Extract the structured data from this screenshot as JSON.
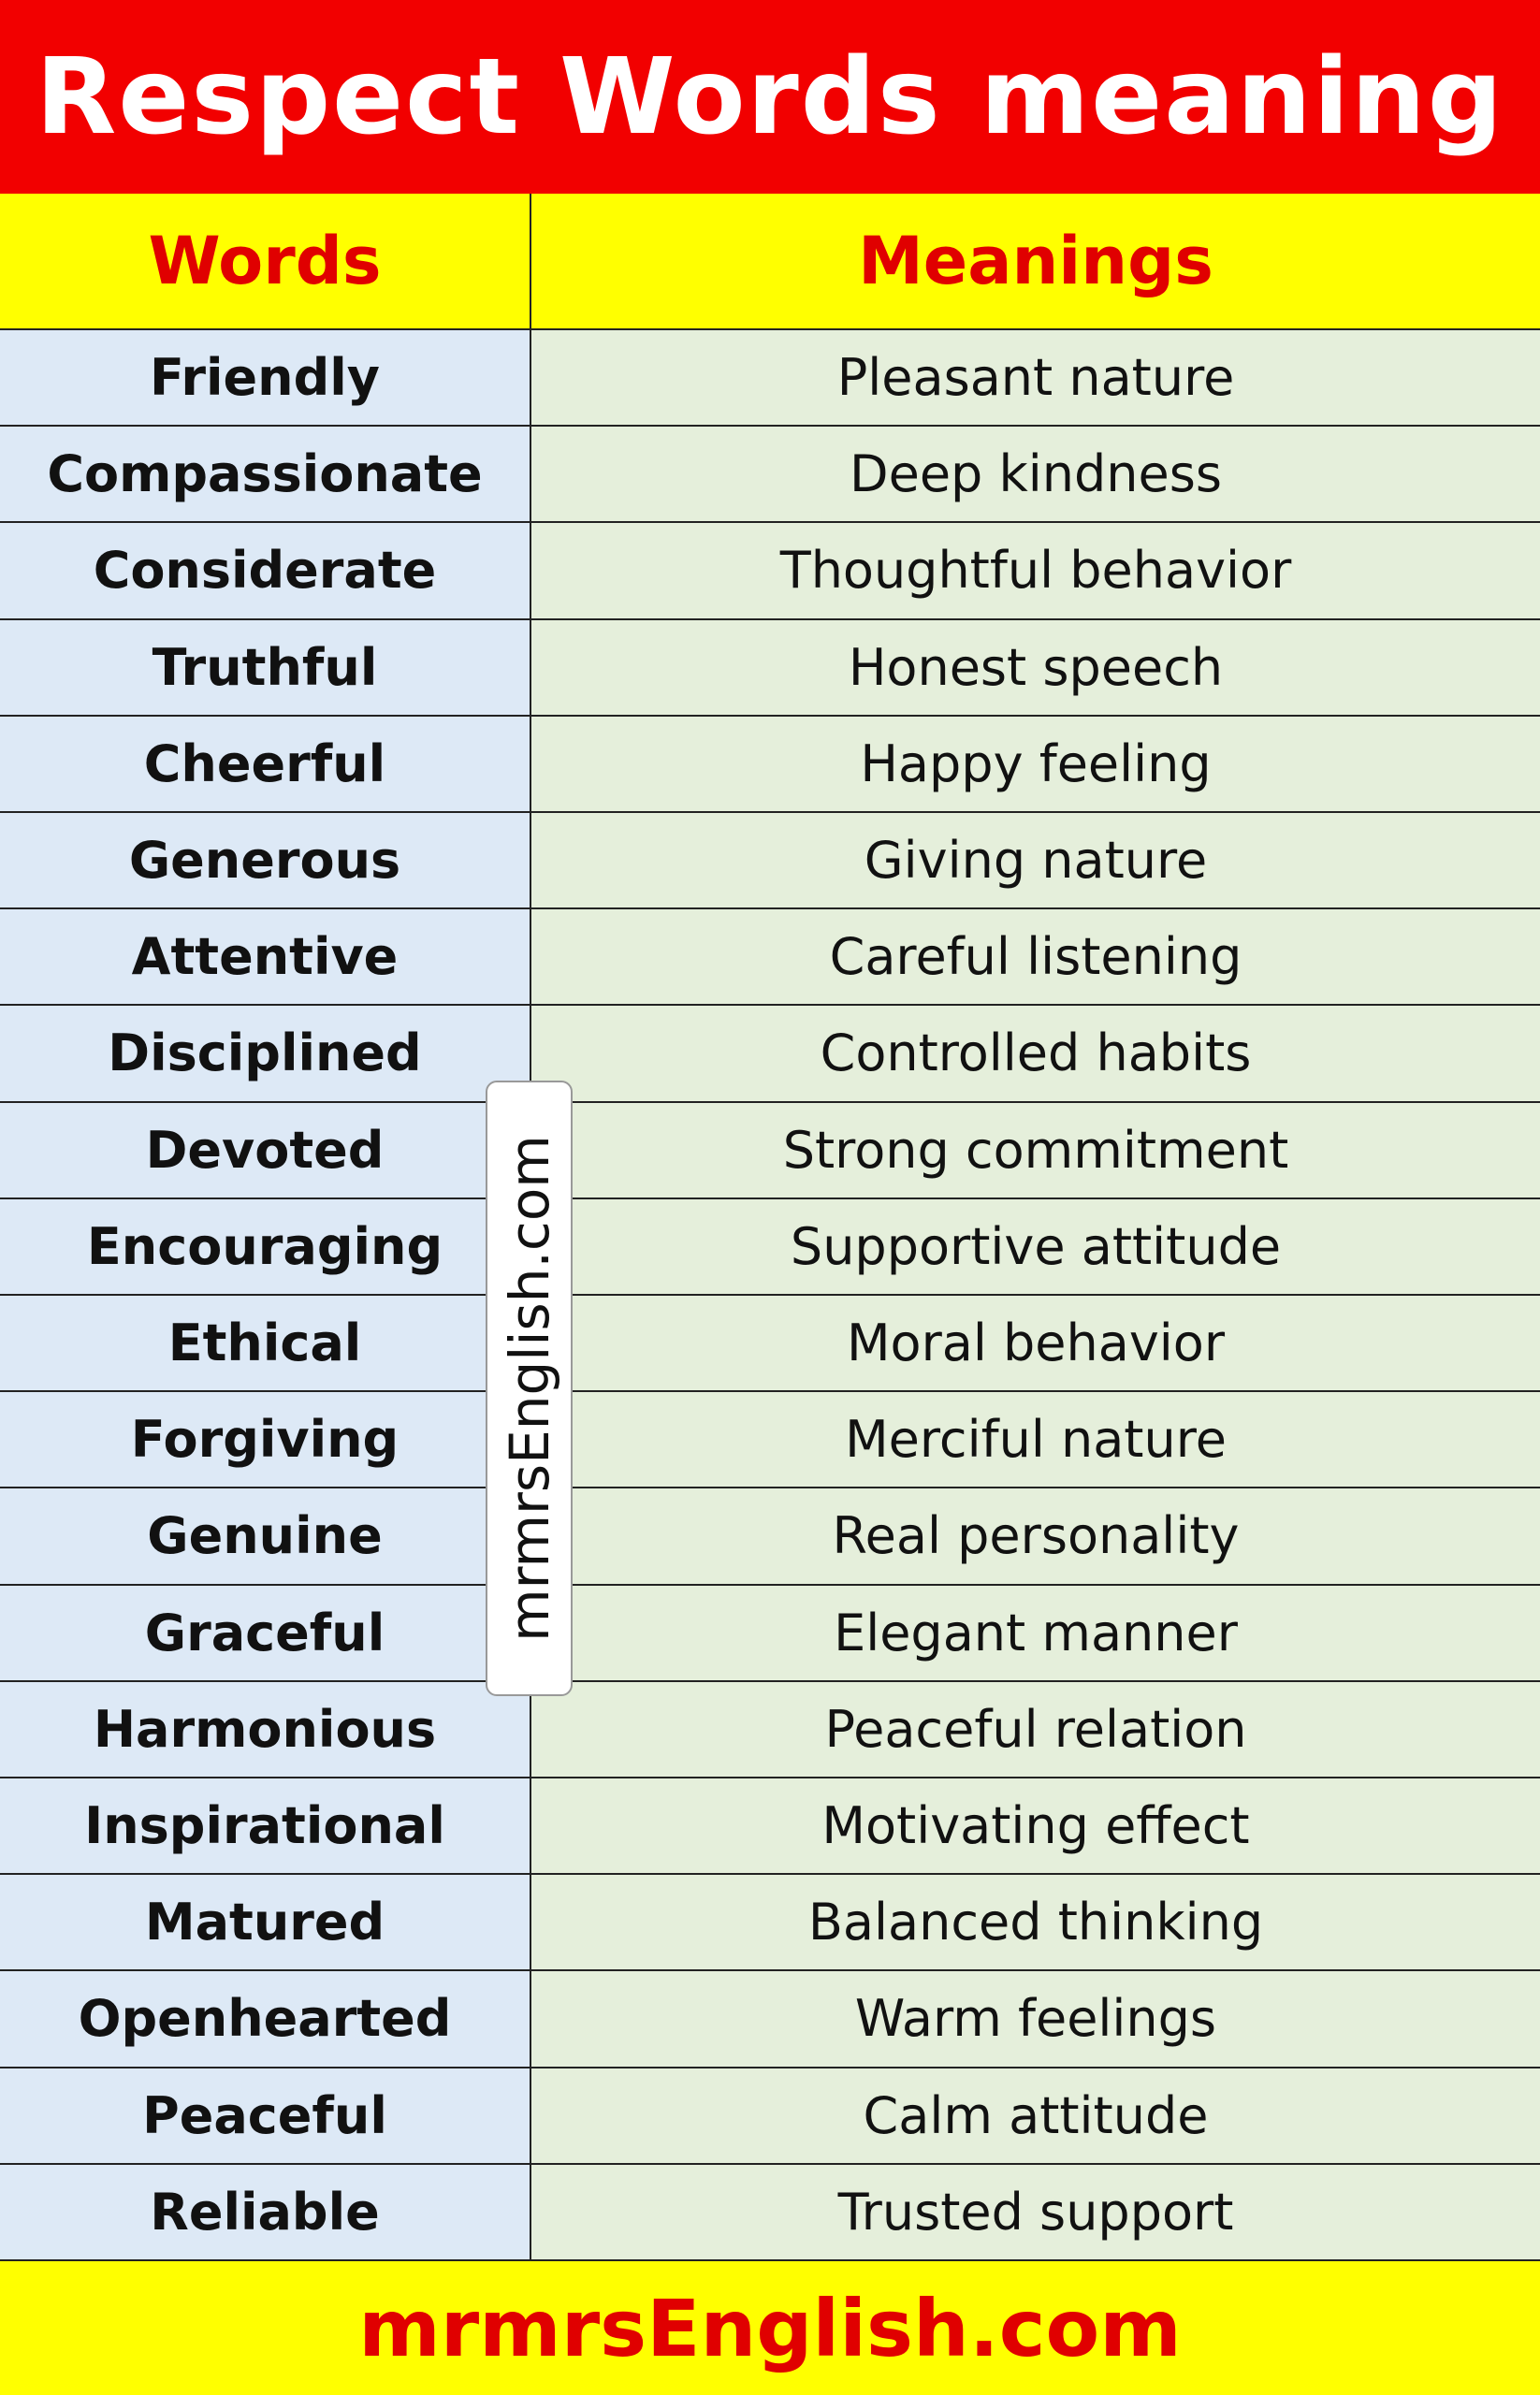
{
  "header": {
    "title": "Respect Words meaning"
  },
  "table": {
    "headers": [
      "Words",
      "Meanings"
    ],
    "rows": [
      [
        "Friendly",
        "Pleasant nature"
      ],
      [
        "Compassionate",
        "Deep kindness"
      ],
      [
        "Considerate",
        "Thoughtful behavior"
      ],
      [
        "Truthful",
        "Honest speech"
      ],
      [
        "Cheerful",
        "Happy feeling"
      ],
      [
        "Generous",
        "Giving nature"
      ],
      [
        "Attentive",
        "Careful listening"
      ],
      [
        "Disciplined",
        "Controlled habits"
      ],
      [
        "Devoted",
        "Strong commitment"
      ],
      [
        "Encouraging",
        "Supportive attitude"
      ],
      [
        "Ethical",
        "Moral behavior"
      ],
      [
        "Forgiving",
        "Merciful nature"
      ],
      [
        "Genuine",
        "Real personality"
      ],
      [
        "Graceful",
        "Elegant manner"
      ],
      [
        "Harmonious",
        "Peaceful relation"
      ],
      [
        "Inspirational",
        "Motivating effect"
      ],
      [
        "Matured",
        "Balanced thinking"
      ],
      [
        "Openhearted",
        "Warm feelings"
      ],
      [
        "Peaceful",
        "Calm attitude"
      ],
      [
        "Reliable",
        "Trusted support"
      ]
    ]
  },
  "watermark": "mrmrsEnglish.com",
  "footer": "mrmrsEnglish.com"
}
